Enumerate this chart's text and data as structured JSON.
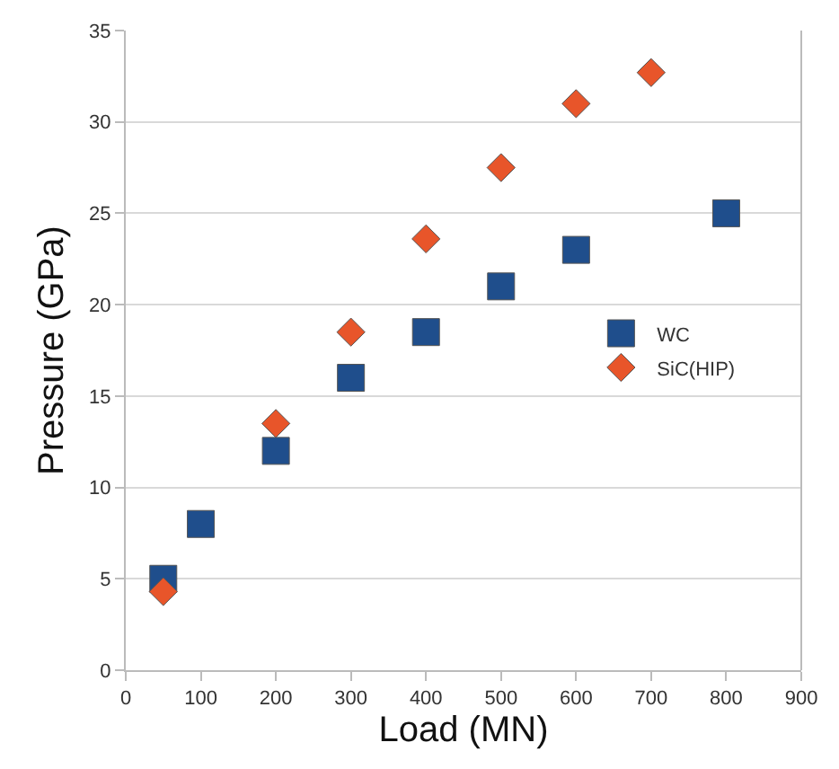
{
  "chart_data": {
    "type": "scatter",
    "xlabel": "Load (MN)",
    "ylabel": "Pressure (GPa)",
    "series": [
      {
        "name": "WC",
        "color": "#1f4e8c",
        "marker": "square",
        "x": [
          50,
          100,
          200,
          300,
          400,
          500,
          600,
          800
        ],
        "values": [
          5,
          8,
          12,
          16,
          18.5,
          21,
          23,
          25
        ]
      },
      {
        "name": "SiC(HIP)",
        "color": "#e8552a",
        "marker": "diamond",
        "x": [
          50,
          200,
          300,
          400,
          500,
          600,
          700
        ],
        "values": [
          4.3,
          13.5,
          18.5,
          23.6,
          27.5,
          31,
          32.7
        ]
      }
    ],
    "xlim": [
      0,
      900
    ],
    "xticks": [
      0,
      100,
      200,
      300,
      400,
      500,
      600,
      700,
      800,
      900
    ],
    "ylim": [
      0,
      35
    ],
    "yticks": [
      0,
      5,
      10,
      15,
      20,
      25,
      30,
      35
    ],
    "grid": "y",
    "legend": "right"
  }
}
